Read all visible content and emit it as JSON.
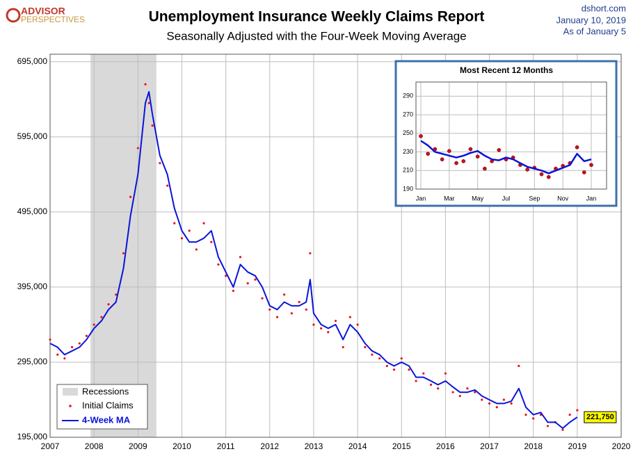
{
  "header": {
    "logo_top": "ADVISOR",
    "logo_bottom": "PERSPECTIVES",
    "source": "dshort.com",
    "date": "January 10, 2019",
    "as_of": "As of January 5"
  },
  "chart_data": [
    {
      "type": "line",
      "title": "Unemployment Insurance Weekly Claims Report",
      "subtitle": "Seasonally Adjusted with the Four-Week Moving Average",
      "xlim": [
        2007,
        2020
      ],
      "xticks": [
        2007,
        2008,
        2009,
        2010,
        2011,
        2012,
        2013,
        2014,
        2015,
        2016,
        2017,
        2018,
        2019,
        2020
      ],
      "ylim": [
        195000,
        705000
      ],
      "yticks": [
        {
          "value": 195000,
          "label": "195,000"
        },
        {
          "value": 295000,
          "label": "295,000"
        },
        {
          "value": 395000,
          "label": "395,000"
        },
        {
          "value": 495000,
          "label": "495,000"
        },
        {
          "value": 595000,
          "label": "595,000"
        },
        {
          "value": 695000,
          "label": "695,000"
        }
      ],
      "grid": true,
      "legend": "lower left",
      "recession_label": "Recessions",
      "recessions": [
        {
          "start": 2007.92,
          "end": 2009.42
        }
      ],
      "x": [
        2007.0,
        2007.17,
        2007.33,
        2007.5,
        2007.67,
        2007.83,
        2008.0,
        2008.17,
        2008.33,
        2008.5,
        2008.67,
        2008.83,
        2009.0,
        2009.17,
        2009.25,
        2009.33,
        2009.5,
        2009.67,
        2009.83,
        2010.0,
        2010.17,
        2010.33,
        2010.5,
        2010.67,
        2010.83,
        2011.0,
        2011.17,
        2011.33,
        2011.5,
        2011.67,
        2011.83,
        2012.0,
        2012.17,
        2012.33,
        2012.5,
        2012.67,
        2012.83,
        2012.92,
        2013.0,
        2013.17,
        2013.33,
        2013.5,
        2013.67,
        2013.83,
        2014.0,
        2014.17,
        2014.33,
        2014.5,
        2014.67,
        2014.83,
        2015.0,
        2015.17,
        2015.33,
        2015.5,
        2015.67,
        2015.83,
        2016.0,
        2016.17,
        2016.33,
        2016.5,
        2016.67,
        2016.83,
        2017.0,
        2017.17,
        2017.33,
        2017.5,
        2017.67,
        2017.83,
        2018.0,
        2018.17,
        2018.33,
        2018.5,
        2018.67,
        2018.83,
        2019.0
      ],
      "series": [
        {
          "name": "Initial Claims",
          "color": "#e8141a",
          "style": "dots",
          "values": [
            325000,
            305000,
            300000,
            315000,
            320000,
            330000,
            345000,
            355000,
            372000,
            385000,
            440000,
            515000,
            580000,
            665000,
            640000,
            610000,
            560000,
            530000,
            480000,
            460000,
            470000,
            445000,
            480000,
            455000,
            425000,
            410000,
            390000,
            435000,
            400000,
            405000,
            380000,
            365000,
            355000,
            385000,
            360000,
            375000,
            365000,
            440000,
            345000,
            340000,
            335000,
            350000,
            315000,
            355000,
            345000,
            315000,
            305000,
            300000,
            290000,
            285000,
            300000,
            285000,
            270000,
            280000,
            265000,
            260000,
            280000,
            255000,
            250000,
            260000,
            255000,
            245000,
            240000,
            235000,
            245000,
            240000,
            290000,
            225000,
            220000,
            225000,
            210000,
            215000,
            205000,
            225000,
            231000
          ]
        },
        {
          "name": "4-Week MA",
          "color": "#0a14d8",
          "style": "line",
          "values": [
            320000,
            315000,
            305000,
            310000,
            315000,
            325000,
            340000,
            350000,
            365000,
            375000,
            420000,
            490000,
            545000,
            640000,
            655000,
            625000,
            570000,
            545000,
            500000,
            470000,
            455000,
            455000,
            460000,
            470000,
            435000,
            415000,
            395000,
            425000,
            415000,
            410000,
            395000,
            370000,
            365000,
            375000,
            370000,
            370000,
            375000,
            405000,
            360000,
            345000,
            340000,
            345000,
            325000,
            345000,
            335000,
            320000,
            310000,
            305000,
            295000,
            290000,
            295000,
            290000,
            275000,
            275000,
            270000,
            265000,
            270000,
            262000,
            255000,
            255000,
            258000,
            250000,
            245000,
            240000,
            240000,
            243000,
            260000,
            235000,
            225000,
            228000,
            215000,
            215000,
            207000,
            215000,
            221750
          ]
        }
      ],
      "annotations": [
        {
          "x": 2019,
          "value": 221750,
          "label": "221,750"
        }
      ]
    },
    {
      "type": "line",
      "title": "Most Recent 12 Months",
      "xlim": [
        0,
        12
      ],
      "xticks": [
        {
          "value": 0,
          "label": "Jan"
        },
        {
          "value": 2,
          "label": "Mar"
        },
        {
          "value": 4,
          "label": "May"
        },
        {
          "value": 6,
          "label": "Jul"
        },
        {
          "value": 8,
          "label": "Sep"
        },
        {
          "value": 10,
          "label": "Nov"
        },
        {
          "value": 12,
          "label": "Jan"
        }
      ],
      "ylim": [
        190,
        300
      ],
      "yticks": [
        190,
        210,
        230,
        250,
        270,
        290
      ],
      "grid": true,
      "x": [
        0,
        0.5,
        1,
        1.5,
        2,
        2.5,
        3,
        3.5,
        4,
        4.5,
        5,
        5.5,
        6,
        6.5,
        7,
        7.5,
        8,
        8.5,
        9,
        9.5,
        10,
        10.5,
        11,
        11.5,
        12
      ],
      "series": [
        {
          "name": "Initial Claims",
          "color": "#c8101a",
          "style": "dots",
          "values": [
            247,
            228,
            233,
            222,
            231,
            218,
            220,
            233,
            225,
            212,
            220,
            232,
            222,
            224,
            216,
            211,
            213,
            206,
            203,
            212,
            215,
            218,
            235,
            208,
            216
          ]
        },
        {
          "name": "4-Week MA",
          "color": "#0a14d8",
          "style": "line",
          "values": [
            242,
            237,
            230,
            228,
            226,
            224,
            226,
            229,
            231,
            226,
            222,
            221,
            224,
            222,
            218,
            214,
            212,
            210,
            207,
            210,
            213,
            216,
            228,
            220,
            222
          ]
        }
      ]
    }
  ]
}
